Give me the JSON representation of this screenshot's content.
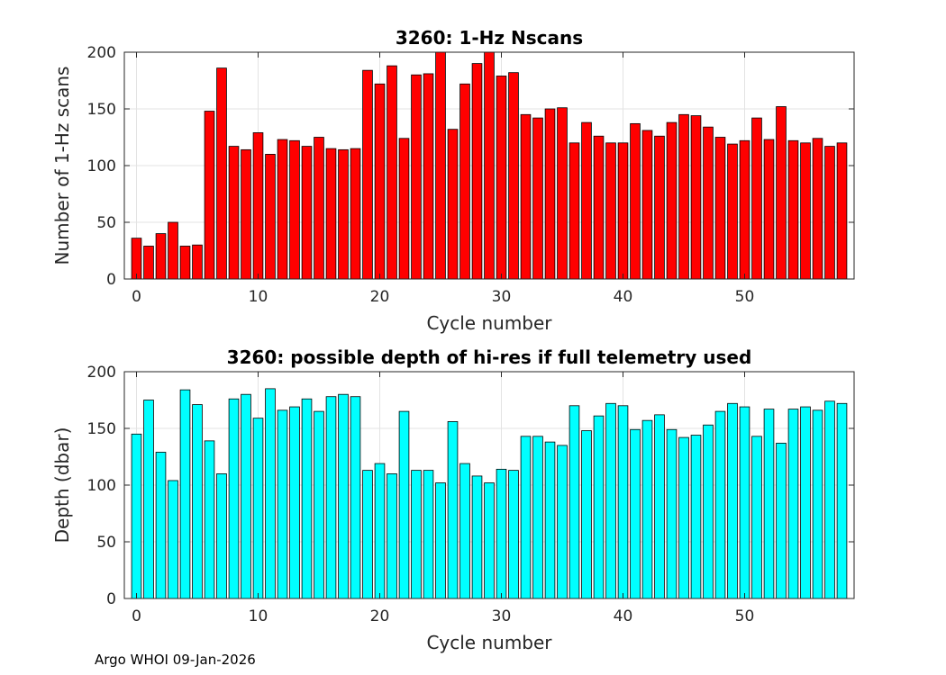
{
  "chart_data": [
    {
      "type": "bar",
      "title": "3260: 1-Hz Nscans",
      "xlabel": "Cycle number",
      "ylabel": "Number of 1-Hz scans",
      "xlim": [
        -1,
        59
      ],
      "ylim": [
        0,
        200
      ],
      "xticks": [
        0,
        10,
        20,
        30,
        40,
        50
      ],
      "yticks": [
        0,
        50,
        100,
        150,
        200
      ],
      "grid": true,
      "bar_color": "#ff0000",
      "x": [
        0,
        1,
        2,
        3,
        4,
        5,
        6,
        7,
        8,
        9,
        10,
        11,
        12,
        13,
        14,
        15,
        16,
        17,
        18,
        19,
        20,
        21,
        22,
        23,
        24,
        25,
        26,
        27,
        28,
        29,
        30,
        31,
        32,
        33,
        34,
        35,
        36,
        37,
        38,
        39,
        40,
        41,
        42,
        43,
        44,
        45,
        46,
        47,
        48,
        49,
        50,
        51,
        52,
        53,
        54,
        55,
        56,
        57,
        58
      ],
      "values": [
        36,
        29,
        40,
        50,
        29,
        30,
        148,
        186,
        117,
        114,
        129,
        110,
        123,
        122,
        117,
        125,
        115,
        114,
        115,
        184,
        172,
        188,
        124,
        180,
        181,
        200,
        132,
        172,
        190,
        200,
        179,
        182,
        145,
        142,
        150,
        151,
        120,
        138,
        126,
        120,
        120,
        137,
        131,
        126,
        138,
        145,
        144,
        134,
        125,
        119,
        122,
        142,
        123,
        152,
        122,
        120,
        124,
        117,
        120
      ]
    },
    {
      "type": "bar",
      "title": "3260: possible depth of hi-res if full telemetry used",
      "xlabel": "Cycle number",
      "ylabel": "Depth (dbar)",
      "xlim": [
        -1,
        59
      ],
      "ylim": [
        0,
        200
      ],
      "xticks": [
        0,
        10,
        20,
        30,
        40,
        50
      ],
      "yticks": [
        0,
        50,
        100,
        150,
        200
      ],
      "grid": true,
      "bar_color": "#00ffff",
      "x": [
        0,
        1,
        2,
        3,
        4,
        5,
        6,
        7,
        8,
        9,
        10,
        11,
        12,
        13,
        14,
        15,
        16,
        17,
        18,
        19,
        20,
        21,
        22,
        23,
        24,
        25,
        26,
        27,
        28,
        29,
        30,
        31,
        32,
        33,
        34,
        35,
        36,
        37,
        38,
        39,
        40,
        41,
        42,
        43,
        44,
        45,
        46,
        47,
        48,
        49,
        50,
        51,
        52,
        53,
        54,
        55,
        56,
        57,
        58
      ],
      "values": [
        145,
        175,
        129,
        104,
        184,
        171,
        139,
        110,
        176,
        180,
        159,
        185,
        166,
        169,
        176,
        165,
        178,
        180,
        178,
        113,
        119,
        110,
        165,
        113,
        113,
        102,
        156,
        119,
        108,
        102,
        114,
        113,
        143,
        143,
        138,
        135,
        170,
        148,
        161,
        172,
        170,
        149,
        157,
        162,
        149,
        142,
        144,
        153,
        165,
        172,
        169,
        143,
        167,
        137,
        167,
        169,
        166,
        174,
        172
      ]
    }
  ],
  "footer": "Argo WHOI 09-Jan-2026"
}
